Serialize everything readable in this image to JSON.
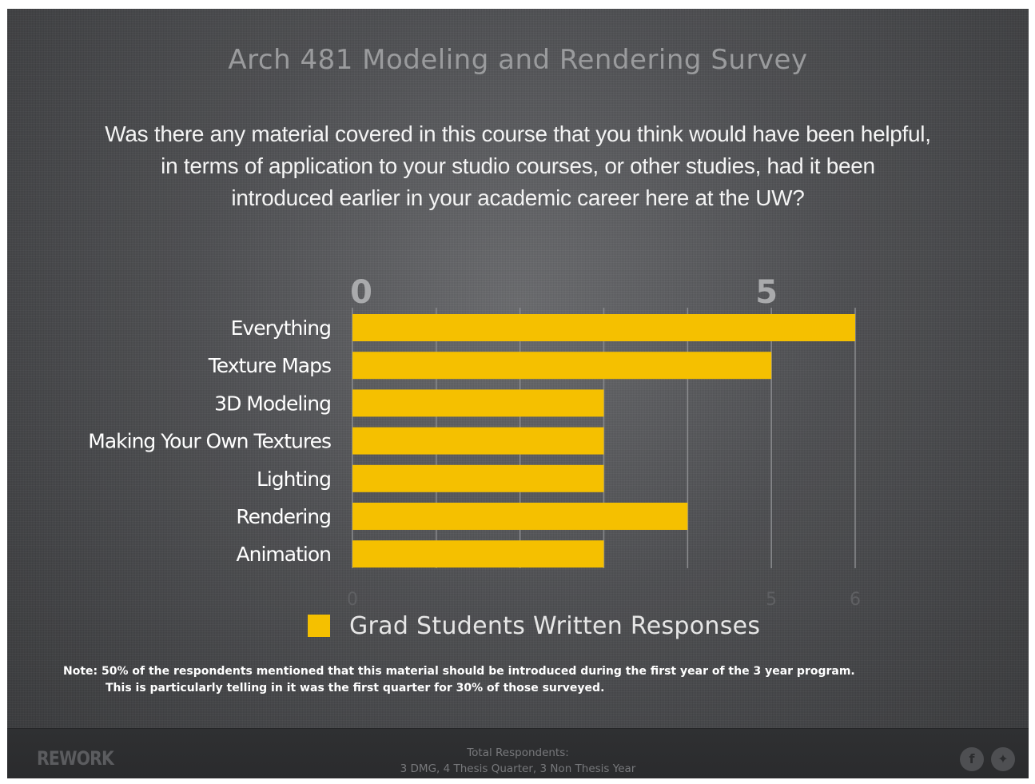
{
  "header": {
    "survey_title": "Arch 481 Modeling and Rendering Survey",
    "question_lines": [
      "Was there any material covered in this course that you think would have been helpful,",
      "in terms of application to your studio courses, or other studies, had it been",
      "introduced earlier in your academic career here at the UW?"
    ]
  },
  "chart_data": {
    "type": "bar",
    "orientation": "horizontal",
    "categories": [
      "Everything",
      "Texture Maps",
      "3D Modeling",
      "Making Your Own Textures",
      "Lighting",
      "Rendering",
      "Animation"
    ],
    "series": [
      {
        "name": "Grad Students Written Responses",
        "values": [
          6,
          5,
          3,
          3,
          3,
          4,
          3
        ]
      }
    ],
    "xlim": [
      0,
      6
    ],
    "top_tick_labels": [
      "0",
      "5"
    ],
    "bottom_tick_labels": [
      "0",
      "5",
      "6"
    ],
    "grid": true,
    "legend_position": "bottom",
    "bar_color": "#f5c000"
  },
  "note": {
    "line1": "Note: 50% of the respondents mentioned that this material should be introduced during the first year of the 3 year program.",
    "line2": "This is particularly telling in it was the first quarter for 30% of those surveyed."
  },
  "footer": {
    "brand": "REWORK",
    "respondents_title": "Total Respondents:",
    "respondents_detail": "3 DMG, 4 Thesis Quarter, 3 Non Thesis Year",
    "facebook_icon": "facebook-icon",
    "twitter_icon": "twitter-icon"
  }
}
